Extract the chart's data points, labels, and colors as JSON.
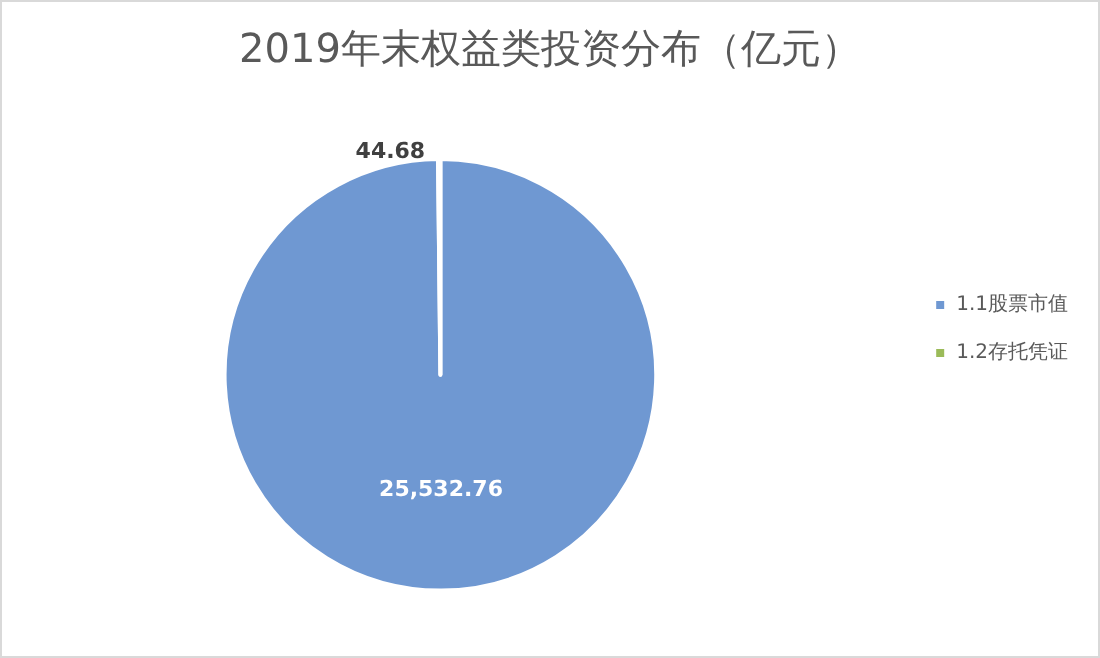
{
  "chart_data": {
    "type": "pie",
    "title": "2019年末权益类投资分布（亿元）",
    "categories": [
      "1.1股票市值",
      "1.2存托凭证"
    ],
    "values": [
      25532.76,
      44.68
    ],
    "colors": [
      "#6f98d2",
      "#9bbb59"
    ],
    "value_labels": [
      "25,532.76",
      "44.68"
    ],
    "legend": "right"
  }
}
